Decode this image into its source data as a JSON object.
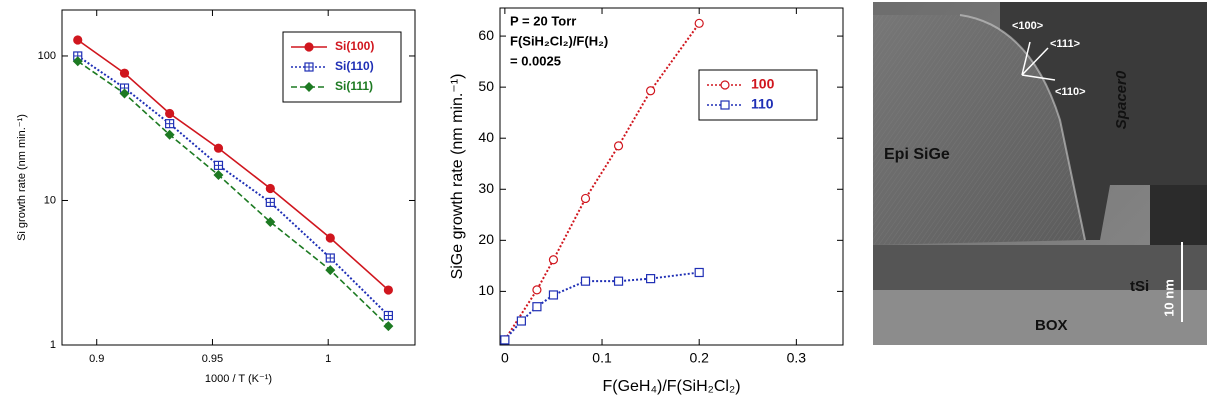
{
  "chart_data": [
    {
      "type": "line",
      "log_y": true,
      "x_label": "1000 / T (K⁻¹)",
      "y_label": "Si growth rate (nm min.⁻¹)",
      "xlim": [
        0.885,
        1.0375
      ],
      "ylim": [
        1,
        208
      ],
      "xticks": [
        0.9,
        0.95,
        1
      ],
      "yticks": [
        1,
        10,
        100
      ],
      "legend": "upper right",
      "series": [
        {
          "name": "Si(100)",
          "color": "#d0161e",
          "dash": "solid",
          "marker": "circle",
          "x": [
            0.8918,
            0.912,
            0.9315,
            0.9526,
            0.975,
            1.0009,
            1.026
          ],
          "values": [
            129,
            76,
            40,
            23,
            12.1,
            5.5,
            2.4
          ]
        },
        {
          "name": "Si(110)",
          "color": "#1f2fb5",
          "dash": "dotted",
          "marker": "square-plus",
          "x": [
            0.8918,
            0.912,
            0.9315,
            0.9526,
            0.975,
            1.0009,
            1.026
          ],
          "values": [
            100,
            60,
            34,
            17.5,
            9.7,
            4.0,
            1.6
          ]
        },
        {
          "name": "Si(111)",
          "color": "#1d7a22",
          "dash": "dashed",
          "marker": "diamond",
          "x": [
            0.8918,
            0.912,
            0.9315,
            0.9526,
            0.975,
            1.0009,
            1.026
          ],
          "values": [
            92,
            55,
            28.5,
            15,
            7.1,
            3.3,
            1.35
          ]
        }
      ]
    },
    {
      "type": "line",
      "log_y": false,
      "x_label": "F(GeH₄)/F(SiH₂Cl₂)",
      "y_label": "SiGe growth rate (nm min.⁻¹)",
      "annotations": [
        "P = 20 Torr",
        "F(SiH₂Cl₂)/F(H₂)",
        "= 0.0025"
      ],
      "xlim": [
        -0.005,
        0.348
      ],
      "ylim": [
        -0.5,
        65.5
      ],
      "xticks": [
        0,
        0.1,
        0.2,
        0.3
      ],
      "yticks": [
        10,
        20,
        30,
        40,
        50,
        60
      ],
      "legend": "center right",
      "series": [
        {
          "name": "100",
          "color": "#d0161e",
          "dash": "dotted",
          "marker": "open-circle",
          "x": [
            0,
            0.033,
            0.05,
            0.083,
            0.117,
            0.15,
            0.2
          ],
          "values": [
            0.5,
            10.3,
            16.2,
            28.2,
            38.5,
            49.3,
            62.5
          ]
        },
        {
          "name": "110",
          "color": "#1f2fb5",
          "dash": "dotted",
          "marker": "open-square",
          "x": [
            0,
            0.017,
            0.033,
            0.05,
            0.083,
            0.117,
            0.15,
            0.2
          ],
          "values": [
            0.5,
            4.2,
            7,
            9.3,
            12,
            12,
            12.5,
            13.7
          ]
        }
      ]
    }
  ],
  "micrograph": {
    "labels": [
      "<100>",
      "<111>",
      "<110>",
      "Spacer0",
      "Epi SiGe",
      "tSi",
      "BOX",
      "10 nm"
    ]
  }
}
